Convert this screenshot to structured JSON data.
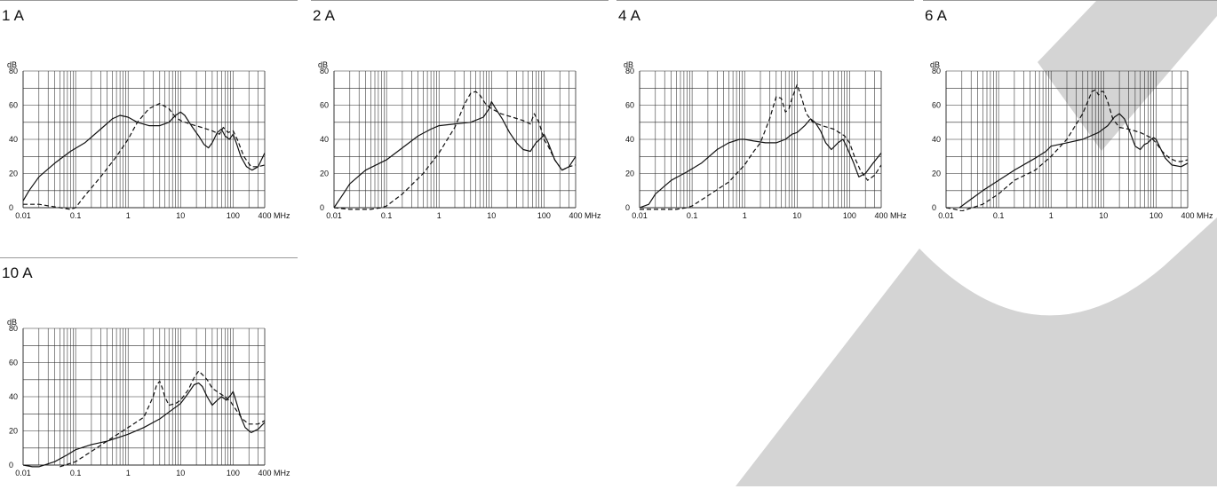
{
  "watermark_color": "#d4d4d4",
  "chart_data": [
    {
      "type": "line",
      "title": "1 A",
      "y_unit_label": "dB",
      "x_unit_label": "MHz",
      "x_scale": "log",
      "xlim": [
        0.01,
        400
      ],
      "ylim": [
        0,
        80
      ],
      "grid": true,
      "x_ticks": [
        0.01,
        0.1,
        1,
        10,
        100,
        400
      ],
      "x_tick_labels": [
        "0.01",
        "0.1",
        "1",
        "10",
        "100",
        "400"
      ],
      "y_ticks": [
        0,
        20,
        40,
        60,
        80
      ],
      "series": [
        {
          "style": "solid",
          "x": [
            0.01,
            0.013,
            0.02,
            0.04,
            0.08,
            0.15,
            0.3,
            0.5,
            0.7,
            1.0,
            1.5,
            2.5,
            4,
            6,
            8,
            10,
            12,
            16,
            22,
            28,
            34,
            40,
            50,
            60,
            70,
            85,
            100,
            115,
            140,
            180,
            230,
            300,
            400
          ],
          "y": [
            4,
            10,
            18,
            26,
            33,
            38,
            46,
            52,
            54,
            53,
            50,
            48,
            48,
            50,
            54,
            56,
            54,
            48,
            42,
            37,
            35,
            38,
            44,
            46,
            42,
            40,
            43,
            38,
            30,
            24,
            22,
            24,
            32
          ]
        },
        {
          "style": "dashed",
          "x": [
            0.01,
            0.02,
            0.05,
            0.08,
            0.1,
            0.15,
            0.3,
            0.6,
            1,
            1.5,
            2.5,
            4,
            6,
            8,
            10,
            15,
            25,
            40,
            55,
            65,
            80,
            100,
            120,
            160,
            220,
            300,
            400
          ],
          "y": [
            2,
            2,
            0,
            -1,
            0,
            7,
            18,
            30,
            40,
            50,
            58,
            61,
            58,
            53,
            51,
            49,
            47,
            45,
            43,
            47,
            44,
            45,
            40,
            30,
            24,
            24,
            25
          ]
        }
      ]
    },
    {
      "type": "line",
      "title": "2 A",
      "y_unit_label": "dB",
      "x_unit_label": "MHz",
      "x_scale": "log",
      "xlim": [
        0.01,
        400
      ],
      "ylim": [
        0,
        80
      ],
      "grid": true,
      "x_ticks": [
        0.01,
        0.1,
        1,
        10,
        100,
        400
      ],
      "x_tick_labels": [
        "0.01",
        "0.1",
        "1",
        "10",
        "100",
        "400"
      ],
      "y_ticks": [
        0,
        20,
        40,
        60,
        80
      ],
      "series": [
        {
          "style": "solid",
          "x": [
            0.01,
            0.015,
            0.02,
            0.04,
            0.1,
            0.2,
            0.4,
            0.7,
            1,
            2,
            4,
            7,
            9,
            10,
            12,
            16,
            22,
            30,
            40,
            55,
            70,
            90,
            100,
            120,
            160,
            220,
            300,
            400
          ],
          "y": [
            0,
            8,
            14,
            22,
            28,
            35,
            42,
            46,
            48,
            49,
            50,
            53,
            58,
            62,
            58,
            52,
            44,
            38,
            34,
            33,
            38,
            41,
            43,
            38,
            28,
            22,
            24,
            30
          ]
        },
        {
          "style": "dashed",
          "x": [
            0.01,
            0.02,
            0.05,
            0.08,
            0.1,
            0.2,
            0.5,
            1,
            2,
            3,
            4,
            5,
            6,
            8,
            10,
            15,
            25,
            40,
            55,
            65,
            80,
            100,
            120,
            160,
            220,
            300,
            400
          ],
          "y": [
            0,
            -1,
            -1,
            0,
            1,
            8,
            20,
            32,
            47,
            60,
            67,
            68,
            66,
            60,
            58,
            55,
            53,
            51,
            49,
            55,
            50,
            40,
            36,
            28,
            22,
            24,
            25
          ]
        }
      ]
    },
    {
      "type": "line",
      "title": "4 A",
      "y_unit_label": "dB",
      "x_unit_label": "MHz",
      "x_scale": "log",
      "xlim": [
        0.01,
        400
      ],
      "ylim": [
        0,
        80
      ],
      "grid": true,
      "x_ticks": [
        0.01,
        0.1,
        1,
        10,
        100,
        400
      ],
      "x_tick_labels": [
        "0.01",
        "0.1",
        "1",
        "10",
        "100",
        "400"
      ],
      "y_ticks": [
        0,
        20,
        40,
        60,
        80
      ],
      "series": [
        {
          "style": "solid",
          "x": [
            0.01,
            0.015,
            0.02,
            0.04,
            0.08,
            0.15,
            0.3,
            0.5,
            0.8,
            1,
            1.5,
            2.5,
            4,
            6,
            8,
            10,
            14,
            18,
            22,
            28,
            35,
            45,
            60,
            75,
            90,
            120,
            150,
            200,
            280,
            400
          ],
          "y": [
            0,
            2,
            8,
            16,
            21,
            26,
            34,
            38,
            40,
            40,
            39,
            38,
            38,
            40,
            43,
            44,
            48,
            52,
            50,
            45,
            38,
            34,
            38,
            40,
            35,
            26,
            18,
            20,
            26,
            32
          ]
        },
        {
          "style": "dashed",
          "x": [
            0.01,
            0.05,
            0.08,
            0.1,
            0.2,
            0.5,
            1,
            1.5,
            2,
            3,
            4,
            5,
            6,
            7,
            8,
            10,
            12,
            15,
            20,
            30,
            50,
            80,
            100,
            130,
            160,
            220,
            300,
            400
          ],
          "y": [
            -1,
            -1,
            0,
            1,
            7,
            15,
            25,
            33,
            38,
            52,
            65,
            64,
            56,
            58,
            64,
            72,
            65,
            55,
            50,
            48,
            46,
            42,
            38,
            28,
            22,
            16,
            19,
            25
          ]
        }
      ]
    },
    {
      "type": "line",
      "title": "6 A",
      "y_unit_label": "dB",
      "x_unit_label": "MHz",
      "x_scale": "log",
      "xlim": [
        0.01,
        400
      ],
      "ylim": [
        0,
        80
      ],
      "grid": true,
      "x_ticks": [
        0.01,
        0.1,
        1,
        10,
        100,
        400
      ],
      "x_tick_labels": [
        "0.01",
        "0.1",
        "1",
        "10",
        "100",
        "400"
      ],
      "y_ticks": [
        0,
        20,
        40,
        60,
        80
      ],
      "series": [
        {
          "style": "solid",
          "x": [
            0.018,
            0.03,
            0.05,
            0.1,
            0.2,
            0.5,
            0.8,
            1,
            2,
            4,
            8,
            12,
            16,
            20,
            25,
            32,
            40,
            50,
            60,
            70,
            80,
            90,
            100,
            120,
            150,
            200,
            300,
            400
          ],
          "y": [
            0,
            5,
            10,
            16,
            22,
            29,
            33,
            36,
            38,
            40,
            44,
            48,
            53,
            55,
            52,
            44,
            36,
            34,
            37,
            38,
            40,
            41,
            40,
            35,
            29,
            25,
            24,
            26
          ]
        },
        {
          "style": "dashed",
          "x": [
            0.01,
            0.015,
            0.02,
            0.05,
            0.1,
            0.2,
            0.5,
            1,
            2,
            4,
            6,
            7,
            8,
            9,
            10,
            12,
            15,
            20,
            30,
            50,
            80,
            100,
            130,
            180,
            250,
            300,
            400
          ],
          "y": [
            0,
            -1,
            -2,
            2,
            8,
            16,
            22,
            30,
            40,
            55,
            68,
            69,
            66,
            68,
            68,
            62,
            52,
            47,
            46,
            44,
            41,
            38,
            33,
            29,
            27,
            27,
            28
          ]
        }
      ]
    },
    {
      "type": "line",
      "title": "10 A",
      "y_unit_label": "dB",
      "x_unit_label": "MHz",
      "x_scale": "log",
      "xlim": [
        0.01,
        400
      ],
      "ylim": [
        0,
        80
      ],
      "grid": true,
      "x_ticks": [
        0.01,
        0.1,
        1,
        10,
        100,
        400
      ],
      "x_tick_labels": [
        "0.01",
        "0.1",
        "1",
        "10",
        "100",
        "400"
      ],
      "y_ticks": [
        0,
        20,
        40,
        60,
        80
      ],
      "series": [
        {
          "style": "solid",
          "x": [
            0.01,
            0.015,
            0.02,
            0.04,
            0.07,
            0.1,
            0.2,
            0.4,
            1,
            2,
            4,
            6,
            10,
            14,
            18,
            22,
            26,
            32,
            40,
            50,
            60,
            75,
            90,
            100,
            115,
            140,
            170,
            220,
            300,
            400
          ],
          "y": [
            0,
            -1,
            -1,
            2,
            6,
            9,
            12,
            14,
            18,
            22,
            27,
            31,
            36,
            42,
            47,
            48,
            46,
            40,
            35,
            38,
            40,
            38,
            41,
            43,
            37,
            28,
            22,
            19,
            21,
            25
          ]
        },
        {
          "style": "dashed",
          "x": [
            0.05,
            0.1,
            0.2,
            0.5,
            1,
            2,
            3,
            3.5,
            4,
            4.5,
            5,
            6,
            8,
            10,
            14,
            18,
            22,
            26,
            32,
            40,
            55,
            70,
            90,
            110,
            150,
            200,
            300,
            400
          ],
          "y": [
            -1,
            2,
            8,
            16,
            22,
            28,
            40,
            47,
            49,
            45,
            40,
            35,
            36,
            38,
            44,
            51,
            55,
            53,
            50,
            45,
            42,
            40,
            37,
            33,
            27,
            24,
            24,
            26
          ]
        }
      ]
    }
  ]
}
